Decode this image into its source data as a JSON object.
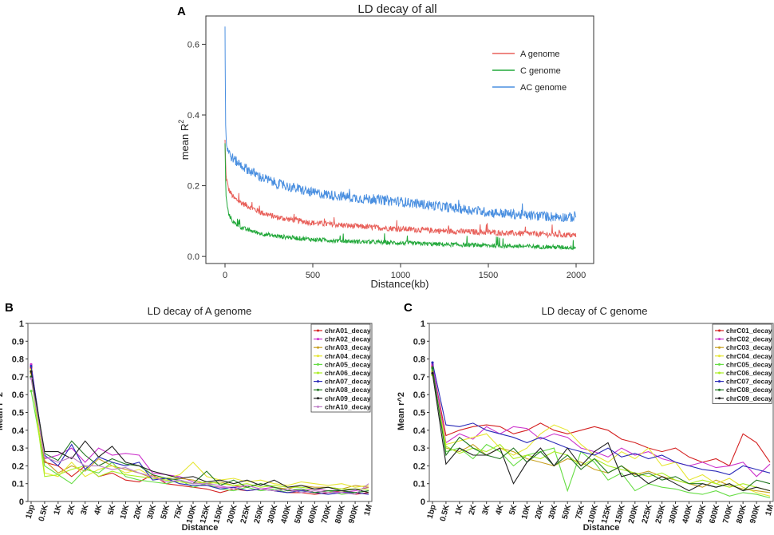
{
  "colors": {
    "a_genome": "#e8605a",
    "c_genome": "#22a83a",
    "ac_genome": "#4a8fe0"
  },
  "panels": {
    "a": "A",
    "b": "B",
    "c": "C"
  },
  "chart_data": [
    {
      "panel": "A",
      "type": "line",
      "title": "LD decay of  all",
      "xlabel": "Distance(kb)",
      "ylabel": "mean R",
      "ylabel_superscript": "2",
      "xlim": [
        0,
        2000
      ],
      "ylim": [
        -0.02,
        0.68
      ],
      "xticks": [
        0,
        500,
        1000,
        1500,
        2000
      ],
      "yticks": [
        0.0,
        0.2,
        0.4,
        0.6
      ],
      "ytick_labels": [
        "0.0",
        "0.2",
        "0.4",
        "0.6"
      ],
      "legend_position": "top-right",
      "series": [
        {
          "name": "A genome",
          "color": "#e8605a",
          "x": [
            0,
            5,
            20,
            50,
            100,
            200,
            300,
            500,
            750,
            1000,
            1250,
            1500,
            1750,
            2000
          ],
          "y": [
            0.33,
            0.23,
            0.19,
            0.165,
            0.15,
            0.125,
            0.11,
            0.095,
            0.085,
            0.078,
            0.072,
            0.068,
            0.064,
            0.06
          ]
        },
        {
          "name": "C genome",
          "color": "#22a83a",
          "x": [
            0,
            5,
            20,
            50,
            100,
            200,
            300,
            500,
            750,
            1000,
            1250,
            1500,
            1750,
            2000
          ],
          "y": [
            0.32,
            0.17,
            0.12,
            0.095,
            0.08,
            0.065,
            0.057,
            0.048,
            0.042,
            0.038,
            0.034,
            0.031,
            0.028,
            0.025
          ]
        },
        {
          "name": "AC genome",
          "color": "#4a8fe0",
          "x": [
            0,
            3,
            10,
            30,
            60,
            100,
            200,
            300,
            500,
            750,
            1000,
            1250,
            1500,
            1750,
            2000
          ],
          "y": [
            0.65,
            0.37,
            0.31,
            0.285,
            0.27,
            0.255,
            0.225,
            0.205,
            0.18,
            0.165,
            0.155,
            0.14,
            0.125,
            0.115,
            0.11
          ]
        }
      ]
    },
    {
      "panel": "B",
      "type": "line",
      "title": "LD decay of A genome",
      "xlabel": "Distance",
      "ylabel": "Mean r^2",
      "ylim": [
        0,
        1
      ],
      "yticks": [
        "0",
        "0.1",
        "0.2",
        "0.3",
        "0.4",
        "0.5",
        "0.6",
        "0.7",
        "0.8",
        "0.9",
        "1"
      ],
      "categories": [
        "1bp",
        "0.5K",
        "1K",
        "2K",
        "3K",
        "4K",
        "5K",
        "10K",
        "20K",
        "30K",
        "50K",
        "75K",
        "100K",
        "125K",
        "150K",
        "200K",
        "225K",
        "250K",
        "300K",
        "400K",
        "500K",
        "600K",
        "700K",
        "800K",
        "900K",
        "1M"
      ],
      "legend_position": "top-right",
      "series": [
        {
          "name": "chrA01_decay",
          "color": "#d42020",
          "values": [
            0.75,
            0.22,
            0.2,
            0.14,
            0.2,
            0.14,
            0.16,
            0.12,
            0.11,
            0.15,
            0.1,
            0.09,
            0.08,
            0.07,
            0.05,
            0.07,
            0.06,
            0.07,
            0.06,
            0.05,
            0.05,
            0.04,
            0.05,
            0.06,
            0.04,
            0.05
          ]
        },
        {
          "name": "chrA02_decay",
          "color": "#cc33cc",
          "values": [
            0.77,
            0.24,
            0.26,
            0.3,
            0.22,
            0.3,
            0.26,
            0.27,
            0.26,
            0.16,
            0.15,
            0.14,
            0.11,
            0.09,
            0.08,
            0.08,
            0.09,
            0.07,
            0.08,
            0.06,
            0.06,
            0.07,
            0.06,
            0.05,
            0.06,
            0.08
          ]
        },
        {
          "name": "chrA03_decay",
          "color": "#c8a020",
          "values": [
            0.72,
            0.23,
            0.16,
            0.2,
            0.17,
            0.24,
            0.2,
            0.18,
            0.16,
            0.13,
            0.12,
            0.13,
            0.12,
            0.1,
            0.11,
            0.09,
            0.08,
            0.1,
            0.08,
            0.07,
            0.09,
            0.08,
            0.08,
            0.07,
            0.09,
            0.08
          ]
        },
        {
          "name": "chrA04_decay",
          "color": "#e6e632",
          "values": [
            0.74,
            0.16,
            0.14,
            0.22,
            0.14,
            0.18,
            0.2,
            0.16,
            0.18,
            0.14,
            0.13,
            0.15,
            0.22,
            0.14,
            0.12,
            0.13,
            0.11,
            0.12,
            0.1,
            0.09,
            0.11,
            0.1,
            0.09,
            0.1,
            0.08,
            0.09
          ]
        },
        {
          "name": "chrA05_decay",
          "color": "#66dd44",
          "values": [
            0.62,
            0.2,
            0.15,
            0.1,
            0.18,
            0.16,
            0.22,
            0.14,
            0.12,
            0.11,
            0.1,
            0.12,
            0.08,
            0.1,
            0.07,
            0.06,
            0.08,
            0.06,
            0.07,
            0.05,
            0.06,
            0.05,
            0.06,
            0.04,
            0.05,
            0.06
          ]
        },
        {
          "name": "chrA06_decay",
          "color": "#aaee22",
          "values": [
            0.7,
            0.14,
            0.15,
            0.18,
            0.2,
            0.14,
            0.17,
            0.15,
            0.14,
            0.13,
            0.12,
            0.11,
            0.1,
            0.11,
            0.1,
            0.09,
            0.1,
            0.08,
            0.09,
            0.08,
            0.08,
            0.07,
            0.08,
            0.07,
            0.07,
            0.07
          ]
        },
        {
          "name": "chrA07_decay",
          "color": "#2a2ab8",
          "values": [
            0.76,
            0.26,
            0.2,
            0.32,
            0.18,
            0.25,
            0.22,
            0.2,
            0.22,
            0.12,
            0.13,
            0.1,
            0.09,
            0.09,
            0.07,
            0.08,
            0.06,
            0.07,
            0.06,
            0.05,
            0.06,
            0.05,
            0.04,
            0.05,
            0.05,
            0.04
          ]
        },
        {
          "name": "chrA08_decay",
          "color": "#227722",
          "values": [
            0.7,
            0.27,
            0.23,
            0.34,
            0.26,
            0.2,
            0.24,
            0.21,
            0.2,
            0.15,
            0.13,
            0.12,
            0.1,
            0.17,
            0.09,
            0.12,
            0.08,
            0.1,
            0.08,
            0.06,
            0.07,
            0.05,
            0.06,
            0.06,
            0.05,
            0.06
          ]
        },
        {
          "name": "chrA09_decay",
          "color": "#202020",
          "values": [
            0.73,
            0.28,
            0.28,
            0.24,
            0.34,
            0.25,
            0.31,
            0.22,
            0.2,
            0.17,
            0.15,
            0.13,
            0.14,
            0.11,
            0.12,
            0.1,
            0.12,
            0.09,
            0.12,
            0.08,
            0.09,
            0.07,
            0.08,
            0.06,
            0.07,
            0.05
          ]
        },
        {
          "name": "chrA10_decay",
          "color": "#c080c8",
          "values": [
            0.69,
            0.25,
            0.22,
            0.25,
            0.2,
            0.2,
            0.18,
            0.19,
            0.16,
            0.14,
            0.11,
            0.12,
            0.1,
            0.1,
            0.09,
            0.07,
            0.09,
            0.07,
            0.06,
            0.07,
            0.05,
            0.06,
            0.05,
            0.05,
            0.04,
            0.1
          ]
        }
      ]
    },
    {
      "panel": "C",
      "type": "line",
      "title": "LD decay of C genome",
      "xlabel": "Distance",
      "ylabel": "Mean r^2",
      "ylim": [
        0,
        1
      ],
      "yticks": [
        "0",
        "0.1",
        "0.2",
        "0.3",
        "0.4",
        "0.5",
        "0.6",
        "0.7",
        "0.8",
        "0.9",
        "1"
      ],
      "categories": [
        "1bp",
        "0.5K",
        "1K",
        "2K",
        "3K",
        "4K",
        "5K",
        "10K",
        "20K",
        "30K",
        "50K",
        "75K",
        "100K",
        "125K",
        "150K",
        "200K",
        "225K",
        "250K",
        "300K",
        "400K",
        "500K",
        "600K",
        "700K",
        "800K",
        "900K",
        "1M"
      ],
      "legend_position": "top-right",
      "series": [
        {
          "name": "chrC01_decay",
          "color": "#d42020",
          "values": [
            0.76,
            0.37,
            0.4,
            0.42,
            0.43,
            0.42,
            0.38,
            0.4,
            0.44,
            0.4,
            0.38,
            0.4,
            0.42,
            0.4,
            0.35,
            0.33,
            0.3,
            0.28,
            0.3,
            0.25,
            0.22,
            0.24,
            0.2,
            0.38,
            0.33,
            0.22
          ]
        },
        {
          "name": "chrC02_decay",
          "color": "#cc33cc",
          "values": [
            0.77,
            0.33,
            0.38,
            0.35,
            0.42,
            0.38,
            0.42,
            0.41,
            0.35,
            0.38,
            0.36,
            0.3,
            0.28,
            0.25,
            0.3,
            0.26,
            0.28,
            0.24,
            0.22,
            0.2,
            0.22,
            0.19,
            0.2,
            0.22,
            0.14,
            0.21
          ]
        },
        {
          "name": "chrC03_decay",
          "color": "#c8a020",
          "values": [
            0.73,
            0.3,
            0.28,
            0.32,
            0.26,
            0.3,
            0.28,
            0.24,
            0.22,
            0.2,
            0.24,
            0.22,
            0.18,
            0.16,
            0.2,
            0.15,
            0.17,
            0.14,
            0.12,
            0.1,
            0.08,
            0.12,
            0.09,
            0.07,
            0.06,
            0.05
          ]
        },
        {
          "name": "chrC04_decay",
          "color": "#e6e632",
          "values": [
            0.72,
            0.32,
            0.34,
            0.36,
            0.38,
            0.3,
            0.26,
            0.3,
            0.38,
            0.43,
            0.4,
            0.32,
            0.26,
            0.22,
            0.28,
            0.24,
            0.3,
            0.2,
            0.22,
            0.12,
            0.15,
            0.1,
            0.13,
            0.08,
            0.05,
            0.03
          ]
        },
        {
          "name": "chrC05_decay",
          "color": "#66dd44",
          "values": [
            0.74,
            0.28,
            0.3,
            0.24,
            0.32,
            0.28,
            0.2,
            0.26,
            0.28,
            0.3,
            0.06,
            0.28,
            0.22,
            0.12,
            0.16,
            0.06,
            0.1,
            0.08,
            0.07,
            0.05,
            0.04,
            0.06,
            0.03,
            0.05,
            0.04,
            0.02
          ]
        },
        {
          "name": "chrC06_decay",
          "color": "#aaee22",
          "values": [
            0.71,
            0.31,
            0.27,
            0.3,
            0.28,
            0.32,
            0.24,
            0.26,
            0.24,
            0.28,
            0.26,
            0.2,
            0.24,
            0.2,
            0.18,
            0.16,
            0.14,
            0.16,
            0.12,
            0.1,
            0.12,
            0.1,
            0.08,
            0.1,
            0.08,
            0.06
          ]
        },
        {
          "name": "chrC07_decay",
          "color": "#2a2ab8",
          "values": [
            0.78,
            0.43,
            0.42,
            0.44,
            0.4,
            0.38,
            0.36,
            0.33,
            0.36,
            0.33,
            0.3,
            0.28,
            0.26,
            0.3,
            0.25,
            0.27,
            0.24,
            0.26,
            0.22,
            0.2,
            0.18,
            0.17,
            0.15,
            0.2,
            0.18,
            0.16
          ]
        },
        {
          "name": "chrC08_decay",
          "color": "#227722",
          "values": [
            0.75,
            0.26,
            0.36,
            0.3,
            0.26,
            0.24,
            0.3,
            0.22,
            0.28,
            0.2,
            0.26,
            0.18,
            0.24,
            0.16,
            0.2,
            0.14,
            0.16,
            0.12,
            0.14,
            0.1,
            0.1,
            0.08,
            0.1,
            0.06,
            0.12,
            0.1
          ]
        },
        {
          "name": "chrC09_decay",
          "color": "#202020",
          "values": [
            0.72,
            0.21,
            0.3,
            0.26,
            0.26,
            0.3,
            0.1,
            0.22,
            0.3,
            0.2,
            0.3,
            0.2,
            0.28,
            0.33,
            0.14,
            0.16,
            0.1,
            0.14,
            0.1,
            0.06,
            0.1,
            0.08,
            0.1,
            0.06,
            0.08,
            0.06
          ]
        }
      ]
    }
  ]
}
